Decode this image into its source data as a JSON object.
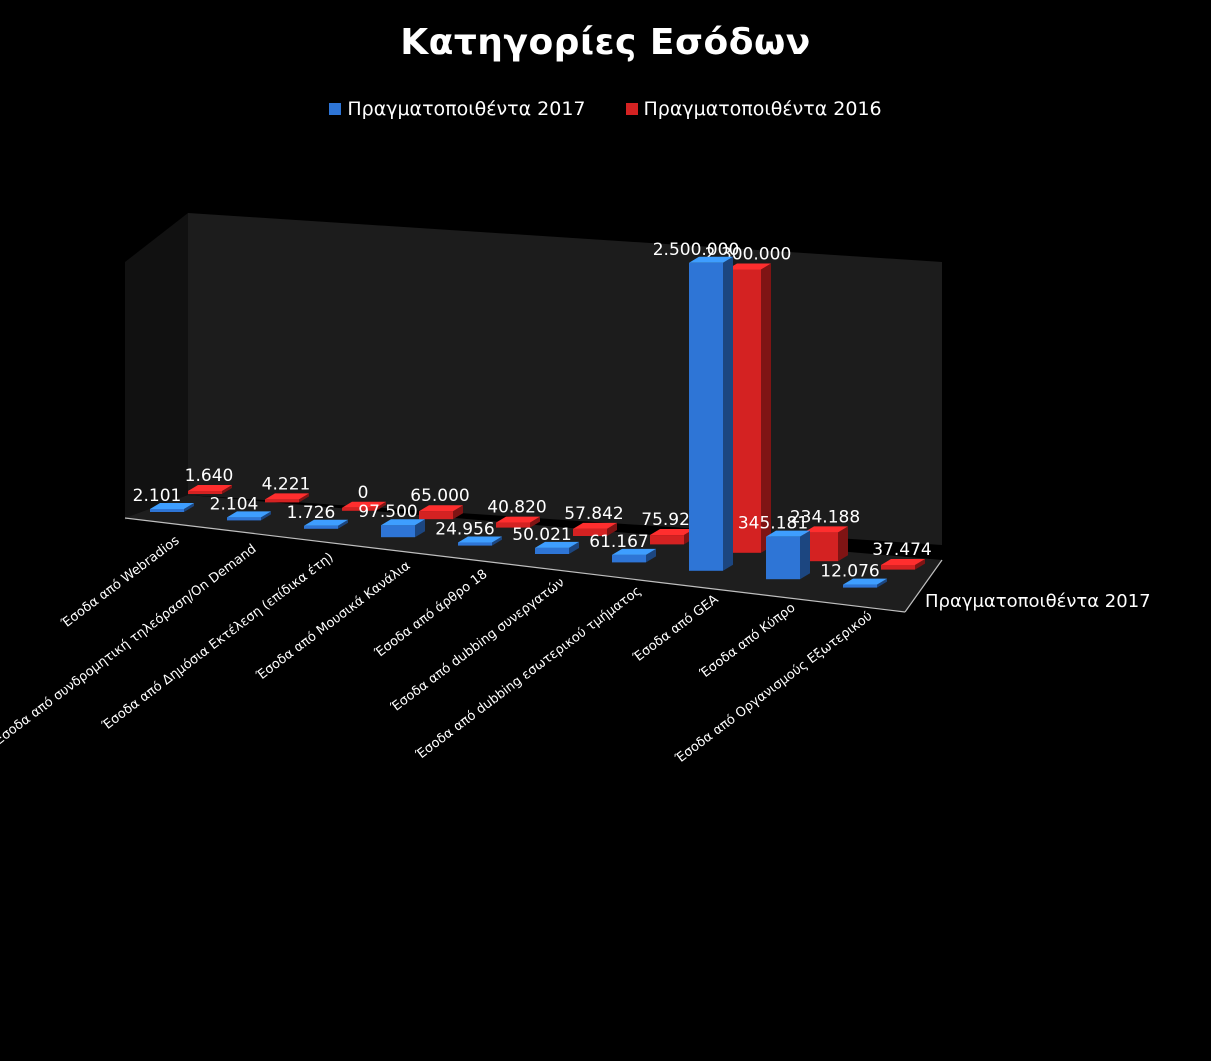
{
  "chart_data": {
    "type": "bar",
    "title": "Κατηγορίες Εσόδων",
    "categories": [
      "Έσοδα από Webradios",
      "Έσοδα από συνδρομητική τηλεόραση/On Demand",
      "Έσοδα από Δημόσια Εκτέλεση (επίδικα έτη)",
      "Έσοδα από Μουσικά Κανάλια",
      "Έσοδα από άρθρο 18",
      "Έσοδα από dubbing συνεργατών",
      "Έσοδα από dubbing εσωτερικού τμήματος",
      "Έσοδα από GEA",
      "Έσοδα από Κύπρο",
      "Έσοδα από Οργανισμούς Εξωτερικού"
    ],
    "series": [
      {
        "name": "Πραγματοποιθέντα 2017",
        "color": "#2e75d6",
        "values": [
          2101,
          2104,
          1726,
          97500,
          24956,
          50021,
          61167,
          2500000,
          345181,
          12076
        ],
        "labels": [
          "2.101",
          "2.104",
          "1.726",
          "97.500",
          "24.956",
          "50.021",
          "61.167",
          "2.500.000",
          "345.181",
          "12.076"
        ]
      },
      {
        "name": "Πραγματοποιθέντα 2016",
        "color": "#d42222",
        "values": [
          1640,
          4221,
          0,
          65000,
          40820,
          57842,
          75921,
          2300000,
          234188,
          37474
        ],
        "labels": [
          "1.640",
          "4.221",
          "0",
          "65.000",
          "40.820",
          "57.842",
          "75.921",
          "2.300.000",
          "234.188",
          "37.474"
        ]
      }
    ],
    "depth_axis_label": "Πραγματοποιθέντα 2017",
    "ylim": [
      0,
      2500000
    ],
    "grid": false,
    "legend_position": "top-center"
  }
}
